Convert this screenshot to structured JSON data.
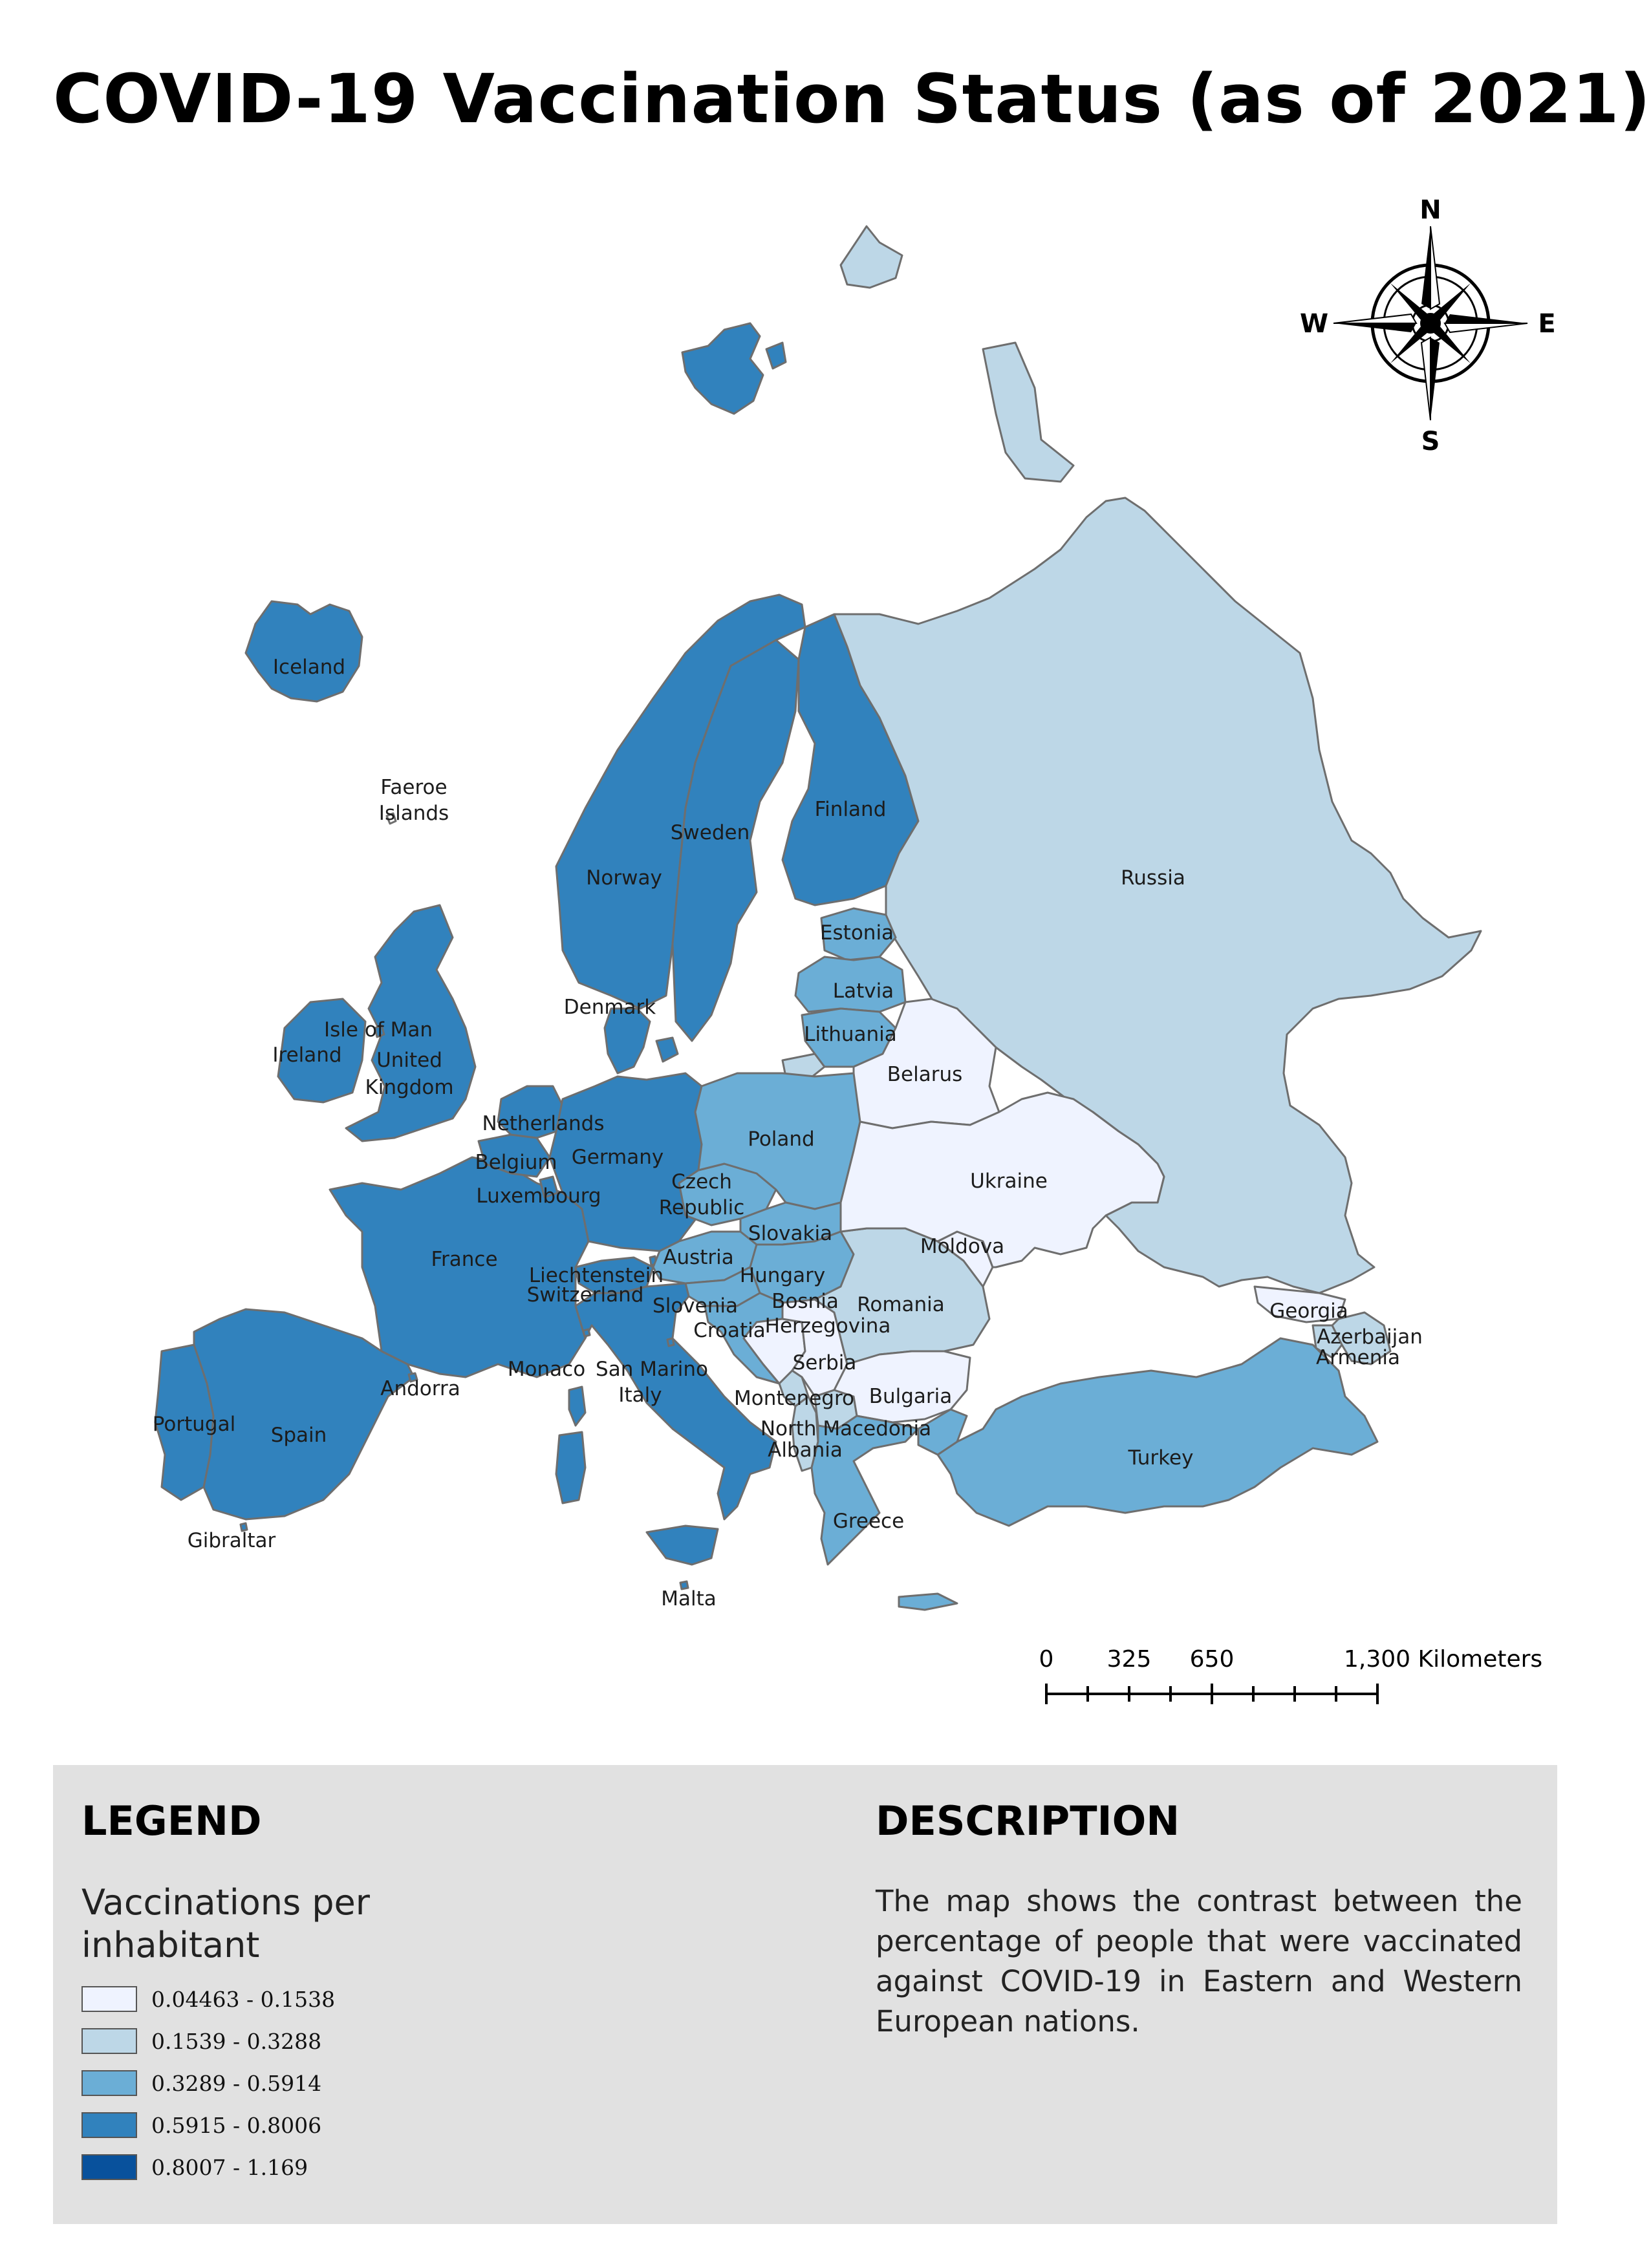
{
  "title": "COVID-19 Vaccination Status (as of 2021)",
  "colors": {
    "class_1": "#eff3ff",
    "class_2": "#bdd7e7",
    "class_3": "#6baed6",
    "class_4": "#3182bd",
    "class_5": "#08519c",
    "panel_background": "#e1e1e1",
    "border": "#6e6e6e"
  },
  "compass": {
    "north": "N",
    "east": "E",
    "south": "S",
    "west": "W"
  },
  "scale_bar": {
    "labels": [
      "0",
      "325",
      "650",
      "1,300 Kilometers"
    ]
  },
  "countries": [
    {
      "name": "Iceland",
      "label": "Iceland",
      "class": 4
    },
    {
      "name": "Faeroe Islands",
      "label": "Faeroe\nIslands",
      "class": 0
    },
    {
      "name": "Norway",
      "label": "Norway",
      "class": 4
    },
    {
      "name": "Sweden",
      "label": "Sweden",
      "class": 4
    },
    {
      "name": "Finland",
      "label": "Finland",
      "class": 4
    },
    {
      "name": "Russia",
      "label": "Russia",
      "class": 2
    },
    {
      "name": "Estonia",
      "label": "Estonia",
      "class": 3
    },
    {
      "name": "Latvia",
      "label": "Latvia",
      "class": 3
    },
    {
      "name": "Lithuania",
      "label": "Lithuania",
      "class": 3
    },
    {
      "name": "Belarus",
      "label": "Belarus",
      "class": 1
    },
    {
      "name": "Denmark",
      "label": "Denmark",
      "class": 4
    },
    {
      "name": "Ireland",
      "label": "Ireland",
      "class": 4
    },
    {
      "name": "Isle of Man",
      "label": "Isle of Man",
      "class": 4
    },
    {
      "name": "United Kingdom",
      "label": "United\nKingdom",
      "class": 4
    },
    {
      "name": "Netherlands",
      "label": "Netherlands",
      "class": 4
    },
    {
      "name": "Belgium",
      "label": "Belgium",
      "class": 4
    },
    {
      "name": "Germany",
      "label": "Germany",
      "class": 4
    },
    {
      "name": "Luxembourg",
      "label": "Luxembourg",
      "class": 4
    },
    {
      "name": "Poland",
      "label": "Poland",
      "class": 3
    },
    {
      "name": "Ukraine",
      "label": "Ukraine",
      "class": 1
    },
    {
      "name": "Czech Republic",
      "label": "Czech\nRepublic",
      "class": 3
    },
    {
      "name": "Slovakia",
      "label": "Slovakia",
      "class": 3
    },
    {
      "name": "Moldova",
      "label": "Moldova",
      "class": 1
    },
    {
      "name": "France",
      "label": "France",
      "class": 4
    },
    {
      "name": "Austria",
      "label": "Austria",
      "class": 3
    },
    {
      "name": "Hungary",
      "label": "Hungary",
      "class": 3
    },
    {
      "name": "Liechtenstein",
      "label": "Liechtenstein",
      "class": 4
    },
    {
      "name": "Switzerland",
      "label": "Switzerland",
      "class": 4
    },
    {
      "name": "Slovenia",
      "label": "Slovenia",
      "class": 3
    },
    {
      "name": "Croatia",
      "label": "Croatia",
      "class": 3
    },
    {
      "name": "Bosnia Herzegovina",
      "label": "Bosnia\nHerzegovina",
      "class": 1
    },
    {
      "name": "Romania",
      "label": "Romania",
      "class": 2
    },
    {
      "name": "Serbia",
      "label": "Serbia",
      "class": 1
    },
    {
      "name": "Georgia",
      "label": "Georgia",
      "class": 1
    },
    {
      "name": "Azerbaijan",
      "label": "Azerbaijan",
      "class": 2
    },
    {
      "name": "Armenia",
      "label": "Armenia",
      "class": 2
    },
    {
      "name": "Monaco",
      "label": "Monaco",
      "class": 4
    },
    {
      "name": "San Marino",
      "label": "San Marino",
      "class": 4
    },
    {
      "name": "Italy",
      "label": "Italy",
      "class": 4
    },
    {
      "name": "Andorra",
      "label": "Andorra",
      "class": 4
    },
    {
      "name": "Montenegro",
      "label": "Montenegro",
      "class": 2
    },
    {
      "name": "Bulgaria",
      "label": "Bulgaria",
      "class": 1
    },
    {
      "name": "Portugal",
      "label": "Portugal",
      "class": 4
    },
    {
      "name": "Spain",
      "label": "Spain",
      "class": 4
    },
    {
      "name": "North Macedonia",
      "label": "North Macedonia",
      "class": 2
    },
    {
      "name": "Albania",
      "label": "Albania",
      "class": 2
    },
    {
      "name": "Turkey",
      "label": "Turkey",
      "class": 3
    },
    {
      "name": "Greece",
      "label": "Greece",
      "class": 3
    },
    {
      "name": "Gibraltar",
      "label": "Gibraltar",
      "class": 4
    },
    {
      "name": "Malta",
      "label": "Malta",
      "class": 4
    }
  ],
  "legend": {
    "heading": "LEGEND",
    "subtitle": "Vaccinations per inhabitant",
    "classes": [
      {
        "range": "0.04463 - 0.1538",
        "color": "#eff3ff"
      },
      {
        "range": "0.1539 - 0.3288",
        "color": "#bdd7e7"
      },
      {
        "range": "0.3289 - 0.5914",
        "color": "#6baed6"
      },
      {
        "range": "0.5915 - 0.8006",
        "color": "#3182bd"
      },
      {
        "range": "0.8007 - 1.169",
        "color": "#08519c"
      }
    ]
  },
  "description": {
    "heading": "DESCRIPTION",
    "text": "The map shows the contrast between the percentage of people that were vaccinated against COVID-19 in Eastern and Western European nations."
  }
}
